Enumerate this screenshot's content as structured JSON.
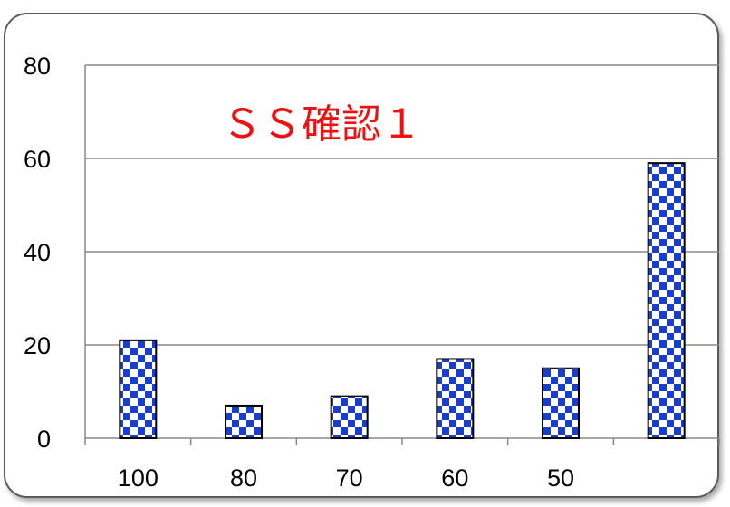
{
  "chart_data": {
    "type": "bar",
    "title": "ＳＳ確認１",
    "categories": [
      "100",
      "80",
      "70",
      "60",
      "50",
      ""
    ],
    "values": [
      21,
      7,
      9,
      17,
      15,
      59
    ],
    "ylim": [
      0,
      80
    ],
    "yticks": [
      0,
      20,
      40,
      60,
      80
    ],
    "grid": true,
    "legend": "none",
    "xlabel": "",
    "ylabel": "",
    "colors": {
      "bar_fill": "#1a3ecc",
      "bar_check": "#ffffff",
      "bar_outline": "#000000",
      "grid": "#888888",
      "title": "#ee1111"
    }
  }
}
